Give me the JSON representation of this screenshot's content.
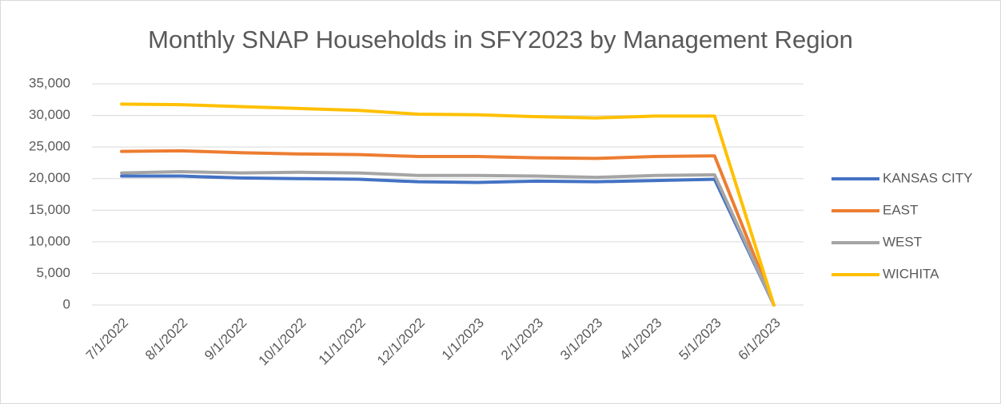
{
  "chart_data": {
    "type": "line",
    "title": "Monthly SNAP Households in SFY2023 by Management Region",
    "categories": [
      "7/1/2022",
      "8/1/2022",
      "9/1/2022",
      "10/1/2022",
      "11/1/2022",
      "12/1/2022",
      "1/1/2023",
      "2/1/2023",
      "3/1/2023",
      "4/1/2023",
      "5/1/2023",
      "6/1/2023"
    ],
    "series": [
      {
        "name": "KANSAS CITY",
        "color": "#4472c4",
        "values": [
          20400,
          20400,
          20100,
          20000,
          19900,
          19500,
          19400,
          19600,
          19500,
          19700,
          19900,
          0
        ]
      },
      {
        "name": "EAST",
        "color": "#ed7d31",
        "values": [
          24300,
          24400,
          24100,
          23900,
          23800,
          23500,
          23500,
          23300,
          23200,
          23500,
          23600,
          0
        ]
      },
      {
        "name": "WEST",
        "color": "#a5a5a5",
        "values": [
          20900,
          21100,
          20900,
          21000,
          20900,
          20500,
          20500,
          20400,
          20200,
          20500,
          20600,
          0
        ]
      },
      {
        "name": "WICHITA",
        "color": "#ffc000",
        "values": [
          31800,
          31700,
          31400,
          31100,
          30800,
          30200,
          30100,
          29800,
          29600,
          29900,
          29900,
          0
        ]
      }
    ],
    "ylim": [
      0,
      35000
    ],
    "yticks": [
      0,
      {
        "value": 5000,
        "label": "5,000"
      },
      {
        "value": 10000,
        "label": "10,000"
      },
      {
        "value": 15000,
        "label": "15,000"
      },
      {
        "value": 20000,
        "label": "20,000"
      },
      {
        "value": 25000,
        "label": "25,000"
      },
      {
        "value": 30000,
        "label": "30,000"
      },
      {
        "value": 35000,
        "label": "35,000"
      }
    ],
    "grid": true,
    "legend": "right"
  }
}
